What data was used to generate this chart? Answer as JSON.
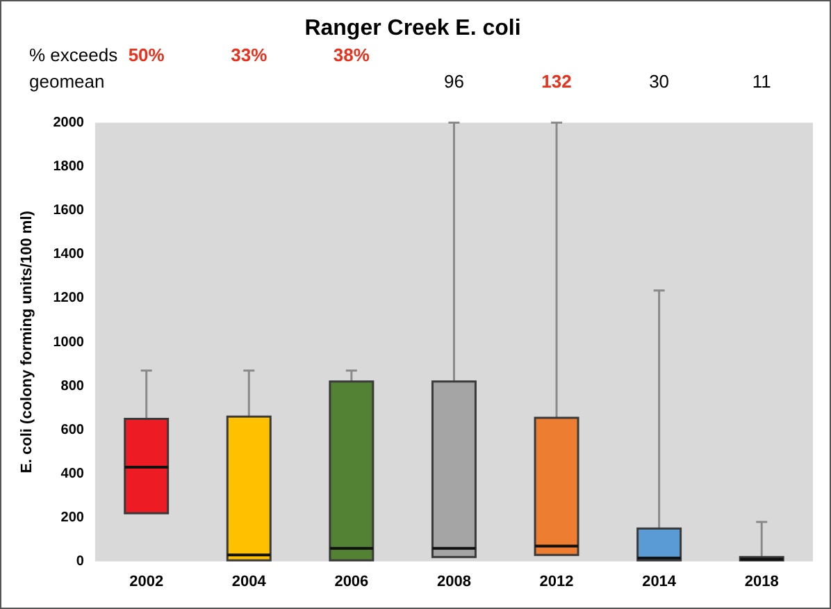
{
  "chart_data": {
    "type": "box",
    "title": "Ranger Creek E. coli",
    "ylabel": "E. coli (colony forming units/100 ml)",
    "categories": [
      "2002",
      "2004",
      "2006",
      "2008",
      "2012",
      "2014",
      "2018"
    ],
    "colors": [
      "#ed1c24",
      "#ffc000",
      "#548235",
      "#a5a5a5",
      "#ed7d31",
      "#5b9bd5",
      "#3d3320"
    ],
    "boxes": [
      {
        "low": 220,
        "q1": 220,
        "median": 430,
        "q3": 650,
        "high": 870
      },
      {
        "low": 5,
        "q1": 5,
        "median": 30,
        "q3": 660,
        "high": 870
      },
      {
        "low": 5,
        "q1": 5,
        "median": 60,
        "q3": 820,
        "high": 870
      },
      {
        "low": 20,
        "q1": 20,
        "median": 60,
        "q3": 820,
        "high": 2000
      },
      {
        "low": 30,
        "q1": 30,
        "median": 70,
        "q3": 655,
        "high": 2000
      },
      {
        "low": 5,
        "q1": 5,
        "median": 15,
        "q3": 150,
        "high": 1235
      },
      {
        "low": 5,
        "q1": 5,
        "median": 10,
        "q3": 20,
        "high": 180
      }
    ],
    "ylim": [
      0,
      2000
    ],
    "yticks": [
      0,
      200,
      400,
      600,
      800,
      1000,
      1200,
      1400,
      1600,
      1800,
      2000
    ],
    "annotations": [
      "% exceeds",
      "50%",
      "33%",
      "38%",
      "geomean",
      "96",
      "132",
      "30",
      "11"
    ]
  }
}
